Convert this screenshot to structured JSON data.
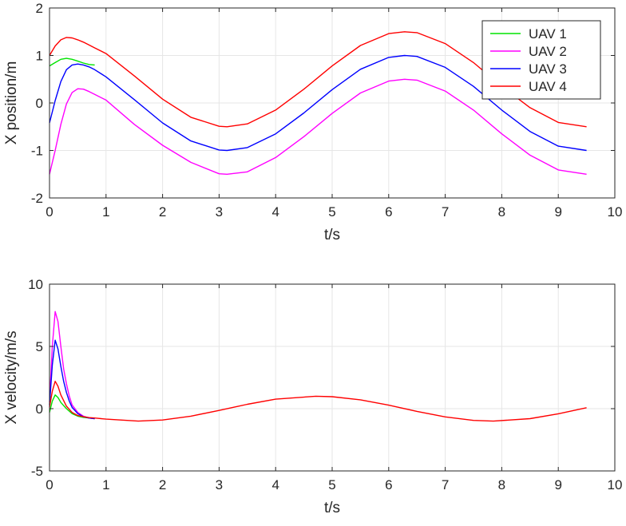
{
  "chart_data": [
    {
      "type": "line",
      "xlabel": "t/s",
      "ylabel": "X position/m",
      "xlim": [
        0,
        10
      ],
      "ylim": [
        -2,
        2
      ],
      "xticks": [
        "0",
        "1",
        "2",
        "3",
        "4",
        "5",
        "6",
        "7",
        "8",
        "9",
        "10"
      ],
      "yticks": [
        "-2",
        "-1",
        "0",
        "1",
        "2"
      ],
      "grid": true,
      "legend_position": "top-right",
      "series": [
        {
          "name": "UAV 1",
          "color": "#00e400",
          "x": [
            0,
            0.1,
            0.2,
            0.3,
            0.4,
            0.5,
            0.6,
            0.7,
            0.8
          ],
          "y": [
            0.78,
            0.85,
            0.92,
            0.94,
            0.92,
            0.88,
            0.84,
            0.81,
            0.8
          ]
        },
        {
          "name": "UAV 2",
          "color": "#ff00ff",
          "x": [
            0,
            0.1,
            0.2,
            0.3,
            0.4,
            0.5,
            0.6,
            0.7,
            0.8,
            1.0,
            1.5,
            2.0,
            2.5,
            3.0,
            3.14,
            3.5,
            4.0,
            4.5,
            5.0,
            5.5,
            6.0,
            6.28,
            6.5,
            7.0,
            7.5,
            8.0,
            8.5,
            9.0,
            9.5
          ],
          "y": [
            -1.5,
            -1.0,
            -0.45,
            -0.02,
            0.22,
            0.3,
            0.29,
            0.24,
            0.18,
            0.06,
            -0.45,
            -0.89,
            -1.25,
            -1.49,
            -1.5,
            -1.45,
            -1.15,
            -0.71,
            -0.22,
            0.21,
            0.46,
            0.5,
            0.48,
            0.25,
            -0.15,
            -0.65,
            -1.1,
            -1.41,
            -1.5
          ]
        },
        {
          "name": "UAV 3",
          "color": "#0000ff",
          "x": [
            0,
            0.1,
            0.2,
            0.3,
            0.4,
            0.5,
            0.6,
            0.7,
            0.8,
            1.0,
            1.5,
            2.0,
            2.5,
            3.0,
            3.14,
            3.5,
            4.0,
            4.5,
            5.0,
            5.5,
            6.0,
            6.28,
            6.5,
            7.0,
            7.5,
            8.0,
            8.5,
            9.0,
            9.5
          ],
          "y": [
            -0.42,
            0.05,
            0.45,
            0.7,
            0.8,
            0.82,
            0.8,
            0.76,
            0.7,
            0.55,
            0.07,
            -0.42,
            -0.8,
            -0.99,
            -1.0,
            -0.94,
            -0.65,
            -0.21,
            0.28,
            0.71,
            0.96,
            1.0,
            0.98,
            0.75,
            0.35,
            -0.15,
            -0.6,
            -0.91,
            -1.0
          ]
        },
        {
          "name": "UAV 4",
          "color": "#ff0000",
          "x": [
            0,
            0.1,
            0.2,
            0.3,
            0.4,
            0.5,
            0.6,
            0.7,
            0.8,
            1.0,
            1.5,
            2.0,
            2.5,
            3.0,
            3.14,
            3.5,
            4.0,
            4.5,
            5.0,
            5.5,
            6.0,
            6.28,
            6.5,
            7.0,
            7.5,
            8.0,
            8.5,
            9.0,
            9.5
          ],
          "y": [
            1.0,
            1.2,
            1.33,
            1.38,
            1.37,
            1.33,
            1.28,
            1.22,
            1.16,
            1.04,
            0.57,
            0.08,
            -0.3,
            -0.49,
            -0.5,
            -0.44,
            -0.15,
            0.29,
            0.78,
            1.21,
            1.46,
            1.5,
            1.48,
            1.25,
            0.85,
            0.35,
            -0.1,
            -0.41,
            -0.5
          ]
        }
      ]
    },
    {
      "type": "line",
      "xlabel": "t/s",
      "ylabel": "X velocity/m/s",
      "xlim": [
        0,
        10
      ],
      "ylim": [
        -5,
        10
      ],
      "xticks": [
        "0",
        "1",
        "2",
        "3",
        "4",
        "5",
        "6",
        "7",
        "8",
        "9",
        "10"
      ],
      "yticks": [
        "-5",
        "0",
        "5",
        "10"
      ],
      "grid": true,
      "series": [
        {
          "name": "UAV 1",
          "color": "#00e400",
          "x": [
            0,
            0.05,
            0.1,
            0.15,
            0.2,
            0.3,
            0.4,
            0.5,
            0.6,
            0.7,
            0.8
          ],
          "y": [
            -0.3,
            0.6,
            1.1,
            0.9,
            0.5,
            0.0,
            -0.4,
            -0.6,
            -0.7,
            -0.75,
            -0.8
          ]
        },
        {
          "name": "UAV 2",
          "color": "#ff00ff",
          "x": [
            0,
            0.05,
            0.1,
            0.15,
            0.2,
            0.25,
            0.3,
            0.35,
            0.4,
            0.5,
            0.6,
            0.7,
            0.8
          ],
          "y": [
            0.5,
            5.0,
            7.8,
            7.0,
            5.0,
            3.2,
            2.0,
            1.0,
            0.3,
            -0.3,
            -0.6,
            -0.75,
            -0.8
          ]
        },
        {
          "name": "UAV 3",
          "color": "#0000ff",
          "x": [
            0,
            0.05,
            0.1,
            0.15,
            0.2,
            0.25,
            0.3,
            0.35,
            0.4,
            0.5,
            0.6,
            0.7,
            0.8
          ],
          "y": [
            0.3,
            3.5,
            5.5,
            4.8,
            3.4,
            2.2,
            1.3,
            0.6,
            0.1,
            -0.4,
            -0.65,
            -0.75,
            -0.8
          ]
        },
        {
          "name": "UAV 4",
          "color": "#ff0000",
          "x": [
            0,
            0.05,
            0.1,
            0.15,
            0.2,
            0.3,
            0.4,
            0.5,
            0.6,
            0.7,
            0.8,
            1.0,
            1.57,
            2.0,
            2.5,
            3.0,
            3.5,
            4.0,
            4.71,
            5.0,
            5.5,
            6.0,
            6.5,
            7.0,
            7.5,
            7.85,
            8.5,
            9.0,
            9.5
          ],
          "y": [
            0.1,
            1.4,
            2.2,
            1.8,
            1.1,
            0.2,
            -0.3,
            -0.55,
            -0.65,
            -0.72,
            -0.75,
            -0.84,
            -1.0,
            -0.91,
            -0.6,
            -0.14,
            0.35,
            0.76,
            1.0,
            0.96,
            0.71,
            0.28,
            -0.22,
            -0.66,
            -0.94,
            -1.0,
            -0.8,
            -0.41,
            0.08
          ]
        }
      ]
    }
  ]
}
